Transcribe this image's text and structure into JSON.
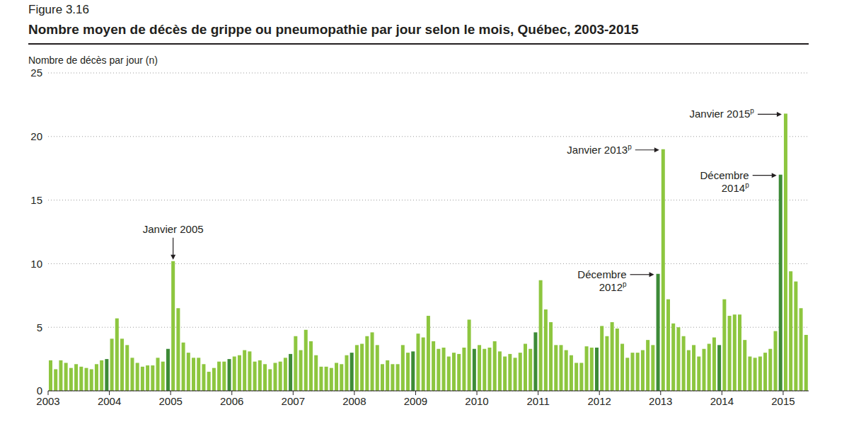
{
  "chart_data": {
    "type": "bar",
    "figure": "Figure 3.16",
    "title": "Nombre moyen de décès de grippe ou pneumopathie par jour selon le mois, Québec, 2003-2015",
    "y_label": "Nombre de décès par jour (n)",
    "categories": [
      "2003",
      null,
      null,
      null,
      null,
      null,
      null,
      null,
      null,
      null,
      null,
      null,
      "2004",
      null,
      null,
      null,
      null,
      null,
      null,
      null,
      null,
      null,
      null,
      null,
      "2005",
      null,
      null,
      null,
      null,
      null,
      null,
      null,
      null,
      null,
      null,
      null,
      "2006",
      null,
      null,
      null,
      null,
      null,
      null,
      null,
      null,
      null,
      null,
      null,
      "2007",
      null,
      null,
      null,
      null,
      null,
      null,
      null,
      null,
      null,
      null,
      null,
      "2008",
      null,
      null,
      null,
      null,
      null,
      null,
      null,
      null,
      null,
      null,
      null,
      "2009",
      null,
      null,
      null,
      null,
      null,
      null,
      null,
      null,
      null,
      null,
      null,
      "2010",
      null,
      null,
      null,
      null,
      null,
      null,
      null,
      null,
      null,
      null,
      null,
      "2011",
      null,
      null,
      null,
      null,
      null,
      null,
      null,
      null,
      null,
      null,
      null,
      "2012",
      null,
      null,
      null,
      null,
      null,
      null,
      null,
      null,
      null,
      null,
      null,
      "2013",
      null,
      null,
      null,
      null,
      null,
      null,
      null,
      null,
      null,
      null,
      null,
      "2014",
      null,
      null,
      null,
      null,
      null,
      null,
      null,
      null,
      null,
      null,
      null,
      "2015",
      null,
      null,
      null,
      null
    ],
    "values": [
      2.4,
      1.7,
      2.4,
      2.2,
      1.8,
      2.1,
      1.9,
      1.8,
      1.7,
      2.1,
      2.4,
      2.5,
      4.1,
      5.7,
      4.1,
      3.6,
      2.6,
      2.2,
      1.9,
      2.0,
      2.0,
      2.6,
      2.3,
      3.3,
      10.2,
      6.5,
      3.8,
      3.0,
      2.6,
      2.6,
      2.1,
      1.5,
      1.8,
      2.3,
      2.3,
      2.5,
      2.7,
      2.8,
      3.2,
      3.1,
      2.3,
      2.4,
      2.1,
      1.7,
      2.2,
      2.3,
      2.6,
      2.9,
      4.3,
      3.2,
      4.8,
      3.9,
      2.8,
      1.9,
      1.9,
      1.8,
      2.2,
      2.1,
      2.8,
      3.0,
      3.6,
      3.7,
      4.3,
      4.6,
      3.6,
      2.1,
      2.4,
      2.1,
      2.1,
      3.6,
      3.0,
      3.1,
      4.5,
      4.2,
      5.9,
      3.9,
      3.3,
      3.4,
      2.7,
      3.0,
      2.9,
      3.4,
      5.6,
      3.3,
      3.6,
      3.3,
      3.4,
      3.9,
      3.1,
      2.7,
      2.9,
      2.6,
      3.0,
      3.7,
      3.3,
      4.6,
      8.7,
      6.4,
      5.4,
      3.6,
      3.6,
      3.2,
      2.8,
      2.2,
      2.2,
      3.5,
      3.4,
      3.4,
      5.1,
      4.3,
      5.4,
      4.9,
      3.7,
      2.6,
      3.0,
      3.0,
      3.2,
      4.0,
      3.6,
      9.2,
      19.0,
      7.2,
      5.3,
      5.0,
      4.3,
      3.2,
      3.6,
      2.7,
      3.3,
      3.7,
      4.2,
      3.6,
      7.2,
      5.9,
      6.0,
      6.0,
      4.0,
      2.7,
      2.6,
      2.7,
      3.0,
      3.3,
      4.7,
      17.0,
      21.8,
      9.4,
      8.6,
      6.5,
      4.4
    ],
    "colors": [
      "#8dc63f",
      "#8dc63f",
      "#8dc63f",
      "#8dc63f",
      "#8dc63f",
      "#8dc63f",
      "#8dc63f",
      "#8dc63f",
      "#8dc63f",
      "#8dc63f",
      "#8dc63f",
      "#3d8b37",
      "#8dc63f",
      "#8dc63f",
      "#8dc63f",
      "#8dc63f",
      "#8dc63f",
      "#8dc63f",
      "#8dc63f",
      "#8dc63f",
      "#8dc63f",
      "#8dc63f",
      "#8dc63f",
      "#3d8b37",
      "#8dc63f",
      "#8dc63f",
      "#8dc63f",
      "#8dc63f",
      "#8dc63f",
      "#8dc63f",
      "#8dc63f",
      "#8dc63f",
      "#8dc63f",
      "#8dc63f",
      "#8dc63f",
      "#3d8b37",
      "#8dc63f",
      "#8dc63f",
      "#8dc63f",
      "#8dc63f",
      "#8dc63f",
      "#8dc63f",
      "#8dc63f",
      "#8dc63f",
      "#8dc63f",
      "#8dc63f",
      "#8dc63f",
      "#3d8b37",
      "#8dc63f",
      "#8dc63f",
      "#8dc63f",
      "#8dc63f",
      "#8dc63f",
      "#8dc63f",
      "#8dc63f",
      "#8dc63f",
      "#8dc63f",
      "#8dc63f",
      "#8dc63f",
      "#3d8b37",
      "#8dc63f",
      "#8dc63f",
      "#8dc63f",
      "#8dc63f",
      "#8dc63f",
      "#8dc63f",
      "#8dc63f",
      "#8dc63f",
      "#8dc63f",
      "#8dc63f",
      "#8dc63f",
      "#3d8b37",
      "#8dc63f",
      "#8dc63f",
      "#8dc63f",
      "#8dc63f",
      "#8dc63f",
      "#8dc63f",
      "#8dc63f",
      "#8dc63f",
      "#8dc63f",
      "#8dc63f",
      "#8dc63f",
      "#3d8b37",
      "#8dc63f",
      "#8dc63f",
      "#8dc63f",
      "#8dc63f",
      "#8dc63f",
      "#8dc63f",
      "#8dc63f",
      "#8dc63f",
      "#8dc63f",
      "#8dc63f",
      "#8dc63f",
      "#3d8b37",
      "#8dc63f",
      "#8dc63f",
      "#8dc63f",
      "#8dc63f",
      "#8dc63f",
      "#8dc63f",
      "#8dc63f",
      "#8dc63f",
      "#8dc63f",
      "#8dc63f",
      "#8dc63f",
      "#3d8b37",
      "#8dc63f",
      "#8dc63f",
      "#8dc63f",
      "#8dc63f",
      "#8dc63f",
      "#8dc63f",
      "#8dc63f",
      "#8dc63f",
      "#8dc63f",
      "#8dc63f",
      "#8dc63f",
      "#3d8b37",
      "#8dc63f",
      "#8dc63f",
      "#8dc63f",
      "#8dc63f",
      "#8dc63f",
      "#8dc63f",
      "#8dc63f",
      "#8dc63f",
      "#8dc63f",
      "#8dc63f",
      "#8dc63f",
      "#3d8b37",
      "#8dc63f",
      "#8dc63f",
      "#8dc63f",
      "#8dc63f",
      "#8dc63f",
      "#8dc63f",
      "#8dc63f",
      "#8dc63f",
      "#8dc63f",
      "#8dc63f",
      "#8dc63f",
      "#3d8b37",
      "#8dc63f",
      "#8dc63f",
      "#8dc63f",
      "#8dc63f",
      "#8dc63f"
    ],
    "ylim": [
      0,
      25
    ],
    "yticks": [
      0,
      5,
      10,
      15,
      20,
      25
    ],
    "grid": true,
    "annotations": [
      {
        "index": 24,
        "text": [
          "Janvier 2005"
        ]
      },
      {
        "index": 119,
        "text": [
          "Décembre",
          "2012"
        ],
        "superscript": "p"
      },
      {
        "index": 120,
        "text": [
          "Janvier 2013"
        ],
        "superscript": "p"
      },
      {
        "index": 143,
        "text": [
          "Décembre",
          "2014"
        ],
        "superscript": "p"
      },
      {
        "index": 144,
        "text": [
          "Janvier 2015"
        ],
        "superscript": "p"
      }
    ]
  }
}
